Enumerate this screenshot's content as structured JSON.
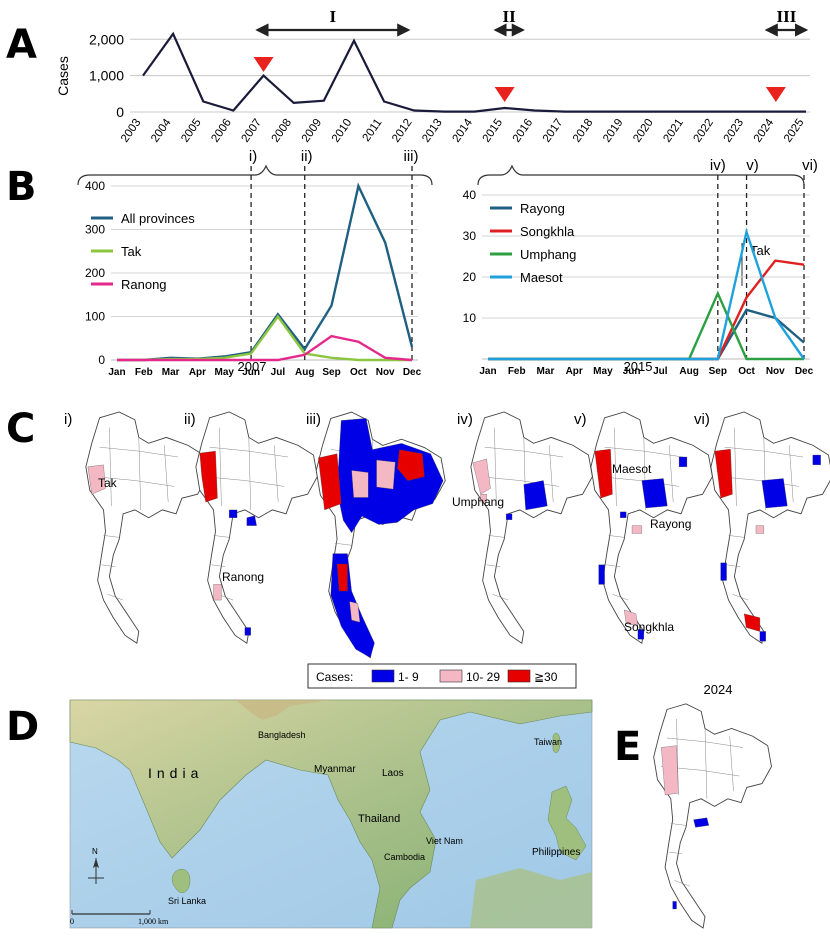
{
  "panel_letters": [
    "A",
    "B",
    "C",
    "D",
    "E"
  ],
  "panel_a": {
    "ylabel": "Cases",
    "periods": [
      {
        "label": "I",
        "from": 2006.8,
        "to": 2011.8
      },
      {
        "label": "II",
        "from": 2014.7,
        "to": 2015.6
      },
      {
        "label": "III",
        "from": 2023.7,
        "to": 2025.0
      }
    ]
  },
  "panel_b": {
    "left_xlabel": "2007",
    "right_xlabel": "2015",
    "left_markers": [
      "i)",
      "ii)",
      "iii)"
    ],
    "right_markers": [
      "iv)",
      "v)",
      "vi)"
    ],
    "tak_group_label": "Tak"
  },
  "panel_c": {
    "map_labels": [
      "i)",
      "ii)",
      "iii)",
      "iv)",
      "v)",
      "vi)"
    ],
    "place_names": [
      "Tak",
      "Ranong",
      "Umphang",
      "Maesot",
      "Rayong",
      "Songkhla"
    ],
    "legend_title": "Cases:",
    "legend": [
      {
        "label": "1- 9",
        "color": "#0000e6"
      },
      {
        "label": "10- 29",
        "color": "#f4b8c4"
      },
      {
        "label": "≧30",
        "color": "#e60000"
      }
    ]
  },
  "panel_d": {
    "countries": [
      "India",
      "Bangladesh",
      "Myanmar",
      "Laos",
      "Thailand",
      "Viet Nam",
      "Cambodia",
      "Taiwan",
      "Philippines",
      "Sri Lanka"
    ],
    "scale_start": "0",
    "scale_end": "1,000 km",
    "north": "N"
  },
  "panel_e": {
    "title": "2024"
  },
  "chart_data": [
    {
      "type": "line",
      "id": "A",
      "ylabel": "Cases",
      "x": [
        "2003",
        "2004",
        "2005",
        "2006",
        "2007",
        "2008",
        "2009",
        "2010",
        "2011",
        "2012",
        "2013",
        "2014",
        "2015",
        "2016",
        "2017",
        "2018",
        "2019",
        "2020",
        "2021",
        "2022",
        "2023",
        "2024",
        "2025"
      ],
      "values": [
        1000,
        2150,
        290,
        40,
        1000,
        250,
        310,
        1960,
        290,
        40,
        10,
        10,
        110,
        40,
        10,
        10,
        10,
        10,
        10,
        10,
        10,
        10,
        10
      ],
      "ylim": [
        0,
        2200
      ],
      "yticks": [
        "0",
        "1,000",
        "2,000"
      ],
      "markers": [
        2007,
        2015,
        2024
      ],
      "color": "#1a1a3a"
    },
    {
      "type": "line",
      "id": "B-2007",
      "xlabel": "2007",
      "categories": [
        "Jan",
        "Feb",
        "Mar",
        "Apr",
        "May",
        "Jun",
        "Jul",
        "Aug",
        "Sep",
        "Oct",
        "Nov",
        "Dec"
      ],
      "ylim": [
        0,
        400
      ],
      "yticks": [
        "0",
        "100",
        "200",
        "300",
        "400"
      ],
      "series": [
        {
          "name": "All provinces",
          "color": "#1f5f82",
          "values": [
            0,
            0,
            5,
            3,
            8,
            18,
            105,
            25,
            125,
            400,
            270,
            30
          ]
        },
        {
          "name": "Tak",
          "color": "#8cc63f",
          "values": [
            0,
            0,
            2,
            2,
            5,
            15,
            100,
            15,
            5,
            0,
            0,
            0
          ]
        },
        {
          "name": "Ranong",
          "color": "#e5298c",
          "values": [
            0,
            0,
            0,
            0,
            0,
            0,
            0,
            12,
            55,
            42,
            5,
            0
          ]
        }
      ],
      "dashed_at": [
        "Jun",
        "Aug",
        "Dec"
      ]
    },
    {
      "type": "line",
      "id": "B-2015",
      "xlabel": "2015",
      "categories": [
        "Jan",
        "Feb",
        "Mar",
        "Apr",
        "May",
        "Jun",
        "Jul",
        "Aug",
        "Sep",
        "Oct",
        "Nov",
        "Dec"
      ],
      "ylim": [
        0,
        40
      ],
      "yticks": [
        "10",
        "20",
        "30",
        "40"
      ],
      "series": [
        {
          "name": "Rayong",
          "color": "#1f5f82",
          "values": [
            0,
            0,
            0,
            0,
            0,
            0,
            0,
            0,
            0,
            12,
            10,
            4
          ]
        },
        {
          "name": "Songkhla",
          "color": "#e02020",
          "values": [
            0,
            0,
            0,
            0,
            0,
            0,
            0,
            0,
            0,
            15,
            24,
            23
          ]
        },
        {
          "name": "Umphang",
          "color": "#2ea043",
          "values": [
            0,
            0,
            0,
            0,
            0,
            0,
            0,
            0,
            16,
            0,
            0,
            0
          ]
        },
        {
          "name": "Maesot",
          "color": "#1fa2dc",
          "values": [
            0,
            0,
            0,
            0,
            0,
            0,
            0,
            0,
            0,
            31,
            10,
            0
          ]
        }
      ],
      "dashed_at": [
        "Sep",
        "Oct",
        "Dec"
      ]
    }
  ]
}
